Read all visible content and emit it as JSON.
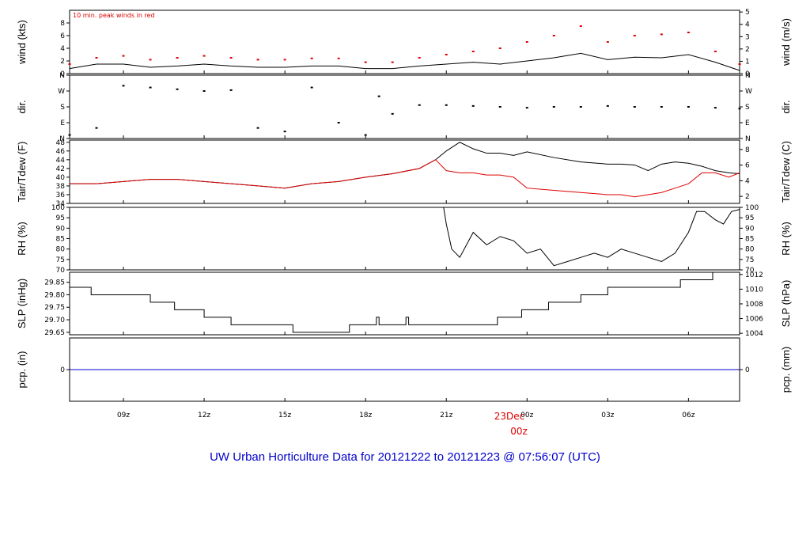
{
  "title": "UW Urban Horticulture Data for 20121222  to  20121223 @ 07:56:07  (UTC)",
  "annotation": "10 min. peak winds in red",
  "date_marker": {
    "day": "23Dec",
    "hour": "00z"
  },
  "colors": {
    "primary": "#000000",
    "peak": "#dd0000",
    "dew": "#dd0000",
    "precip": "#0000cc",
    "title": "#0000cc"
  },
  "chart_data": [
    {
      "type": "line",
      "name": "wind",
      "ylabel_left": "wind (kts)",
      "ylabel_right": "wind (m/s)",
      "ylim": [
        0,
        10
      ],
      "ylim_right": [
        0,
        5.14
      ],
      "left_ticks": [
        "0",
        "2",
        "4",
        "6",
        "8"
      ],
      "right_ticks": [
        "0",
        "1",
        "2",
        "3",
        "4",
        "5"
      ],
      "legend_text": "10 min. peak winds in red",
      "x_hours": [
        7.0,
        8.0,
        9.0,
        10.0,
        11.0,
        12.0,
        13.0,
        14.0,
        15.0,
        16.0,
        17.0,
        18.0,
        19.0,
        20.0,
        21.0,
        22.0,
        23.0,
        24.0,
        25.0,
        26.0,
        27.0,
        28.0,
        29.0,
        30.0,
        31.0,
        31.9
      ],
      "series": [
        {
          "values": [
            0.8,
            1.5,
            1.5,
            1.0,
            1.2,
            1.5,
            1.2,
            1.0,
            1.0,
            1.2,
            1.2,
            0.8,
            0.8,
            1.2,
            1.5,
            1.8,
            1.5,
            2.0,
            2.5,
            3.2,
            2.2,
            2.6,
            2.5,
            3.0,
            1.8,
            0.5
          ]
        },
        {
          "values": [
            1.5,
            2.5,
            2.8,
            2.2,
            2.5,
            2.8,
            2.5,
            2.2,
            2.2,
            2.4,
            2.4,
            1.8,
            1.8,
            2.5,
            3.0,
            3.5,
            4.0,
            5.0,
            6.0,
            7.5,
            5.0,
            6.0,
            6.2,
            6.5,
            3.5,
            1.5
          ]
        }
      ]
    },
    {
      "type": "scatter",
      "name": "dir",
      "ylabel_left": "dir.",
      "ylabel_right": "dir.",
      "ylim": [
        0,
        360
      ],
      "left_ticks": [
        "N",
        "E",
        "S",
        "W",
        "N"
      ],
      "right_ticks": [
        "N",
        "E",
        "S",
        "W",
        "N"
      ],
      "x_hours": [
        7.0,
        8.0,
        9.0,
        10.0,
        11.0,
        12.0,
        13.0,
        14.0,
        15.0,
        16.0,
        17.0,
        18.0,
        18.5,
        19.0,
        20.0,
        21.0,
        22.0,
        23.0,
        24.0,
        25.0,
        26.0,
        27.0,
        28.0,
        29.0,
        30.0,
        31.0,
        31.9
      ],
      "series": [
        {
          "values": [
            20,
            60,
            300,
            290,
            280,
            270,
            275,
            60,
            40,
            290,
            90,
            20,
            240,
            140,
            190,
            190,
            185,
            180,
            175,
            180,
            180,
            185,
            180,
            180,
            180,
            175,
            170
          ]
        }
      ]
    },
    {
      "type": "line",
      "name": "temp",
      "ylabel_left": "Tair/Tdew (F)",
      "ylabel_right": "Tair/Tdew (C)",
      "ylim": [
        34,
        48.5
      ],
      "ylim_right": [
        1.1,
        9.2
      ],
      "left_ticks": [
        "34",
        "36",
        "38",
        "40",
        "42",
        "44",
        "46",
        "48"
      ],
      "right_ticks": [
        "2",
        "4",
        "6",
        "8"
      ],
      "x_hours": [
        7.0,
        8.0,
        9.0,
        10.0,
        11.0,
        12.0,
        13.0,
        14.0,
        15.0,
        15.5,
        16.0,
        17.0,
        18.0,
        19.0,
        20.0,
        20.3,
        20.6,
        21.0,
        21.5,
        22.0,
        22.5,
        23.0,
        23.5,
        24.0,
        25.0,
        26.0,
        27.0,
        27.5,
        28.0,
        28.5,
        29.0,
        29.5,
        30.0,
        30.5,
        31.0,
        31.5,
        31.9
      ],
      "series": [
        {
          "values": [
            38.5,
            38.5,
            39.0,
            39.5,
            39.5,
            39.0,
            38.5,
            38.0,
            37.5,
            38.0,
            38.5,
            39.0,
            40.0,
            40.8,
            42.0,
            43.0,
            44.0,
            46.0,
            48.0,
            46.5,
            45.5,
            45.5,
            45.0,
            45.8,
            44.5,
            43.5,
            43.0,
            43.0,
            42.8,
            41.5,
            43.0,
            43.5,
            43.2,
            42.5,
            41.5,
            41.0,
            40.8
          ]
        },
        {
          "values": [
            38.5,
            38.5,
            39.0,
            39.5,
            39.5,
            39.0,
            38.5,
            38.0,
            37.5,
            38.0,
            38.5,
            39.0,
            40.0,
            40.8,
            42.0,
            43.0,
            44.0,
            41.5,
            41.0,
            41.0,
            40.5,
            40.5,
            40.0,
            37.5,
            37.0,
            36.5,
            36.0,
            36.0,
            35.5,
            36.0,
            36.5,
            37.5,
            38.5,
            41.0,
            41.0,
            40.0,
            41.0
          ]
        }
      ]
    },
    {
      "type": "line",
      "name": "rh",
      "ylabel_left": "RH (%)",
      "ylabel_right": "RH (%)",
      "ylim": [
        70,
        100
      ],
      "left_ticks": [
        "70",
        "75",
        "80",
        "85",
        "90",
        "95",
        "100"
      ],
      "right_ticks": [
        "70",
        "75",
        "80",
        "85",
        "90",
        "95",
        "100"
      ],
      "x_hours": [
        20.9,
        21.0,
        21.2,
        21.5,
        22.0,
        22.5,
        23.0,
        23.5,
        24.0,
        24.5,
        25.0,
        25.5,
        26.0,
        26.5,
        27.0,
        27.5,
        28.0,
        28.5,
        29.0,
        29.5,
        30.0,
        30.3,
        30.6,
        31.0,
        31.3,
        31.6,
        31.9
      ],
      "series": [
        {
          "values": [
            100,
            92,
            80,
            76,
            88,
            82,
            86,
            84,
            78,
            80,
            72,
            74,
            76,
            78,
            76,
            80,
            78,
            76,
            74,
            78,
            88,
            98,
            98,
            94,
            92,
            98,
            99
          ]
        }
      ]
    },
    {
      "type": "line",
      "name": "slp",
      "ylabel_left": "SLP (inHg)",
      "ylabel_right": "SLP (hPa)",
      "ylim": [
        29.64,
        29.89
      ],
      "ylim_right": [
        1003.8,
        1012.3
      ],
      "left_ticks": [
        "29.65",
        "29.70",
        "29.75",
        "29.80",
        "29.85"
      ],
      "right_ticks": [
        "1004",
        "1006",
        "1008",
        "1010",
        "1012"
      ],
      "x_hours": [
        7.0,
        7.8,
        10.0,
        10.9,
        12.0,
        13.0,
        15.3,
        17.4,
        18.4,
        18.5,
        18.6,
        19.5,
        19.6,
        22.9,
        23.8,
        24.8,
        26.0,
        27.0,
        28.0,
        29.7,
        30.9,
        31.9
      ],
      "series": [
        {
          "values": [
            29.83,
            29.8,
            29.77,
            29.74,
            29.71,
            29.68,
            29.65,
            29.68,
            29.71,
            29.68,
            29.68,
            29.71,
            29.68,
            29.71,
            29.74,
            29.77,
            29.8,
            29.83,
            29.83,
            29.86,
            29.89,
            29.89
          ]
        }
      ]
    },
    {
      "type": "line",
      "name": "pcp",
      "ylabel_left": "pcp. (in)",
      "ylabel_right": "pcp. (mm)",
      "ylim": [
        -1,
        1
      ],
      "left_ticks": [
        "0"
      ],
      "right_ticks": [
        "0"
      ],
      "x_hours": [
        7.0,
        31.9
      ],
      "series": [
        {
          "values": [
            0,
            0
          ]
        }
      ]
    }
  ],
  "x_axis": {
    "ticks": [
      "09z",
      "12z",
      "15z",
      "18z",
      "21z",
      "00z",
      "03z",
      "06z"
    ],
    "tick_hours": [
      9,
      12,
      15,
      18,
      21,
      24,
      27,
      30
    ],
    "xlim": [
      7.0,
      31.9
    ]
  }
}
